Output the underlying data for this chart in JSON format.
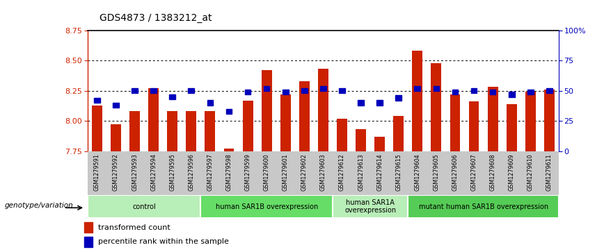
{
  "title": "GDS4873 / 1383212_at",
  "samples": [
    "GSM1279591",
    "GSM1279592",
    "GSM1279593",
    "GSM1279594",
    "GSM1279595",
    "GSM1279596",
    "GSM1279597",
    "GSM1279598",
    "GSM1279599",
    "GSM1279600",
    "GSM1279601",
    "GSM1279602",
    "GSM1279603",
    "GSM1279612",
    "GSM1279613",
    "GSM1279614",
    "GSM1279615",
    "GSM1279604",
    "GSM1279605",
    "GSM1279606",
    "GSM1279607",
    "GSM1279608",
    "GSM1279609",
    "GSM1279610",
    "GSM1279611"
  ],
  "bar_values": [
    8.13,
    7.97,
    8.08,
    8.27,
    8.08,
    8.08,
    8.08,
    7.77,
    8.17,
    8.42,
    8.22,
    8.33,
    8.43,
    8.02,
    7.93,
    7.87,
    8.04,
    8.58,
    8.48,
    8.22,
    8.16,
    8.28,
    8.14,
    8.24,
    8.26
  ],
  "blue_values": [
    42,
    38,
    50,
    50,
    45,
    50,
    40,
    33,
    49,
    52,
    49,
    50,
    52,
    50,
    40,
    40,
    44,
    52,
    52,
    49,
    50,
    49,
    47,
    49,
    50
  ],
  "ylim_left": [
    7.75,
    8.75
  ],
  "yticks_left": [
    7.75,
    8.0,
    8.25,
    8.5,
    8.75
  ],
  "yticks_right_vals": [
    0,
    25,
    50,
    75,
    100
  ],
  "yticks_right_labels": [
    "0",
    "25",
    "50",
    "75",
    "100%"
  ],
  "bar_color": "#CC2200",
  "blue_color": "#0000BB",
  "groups": [
    {
      "label": "control",
      "start": 0,
      "end": 5,
      "color": "#B8EEB8"
    },
    {
      "label": "human SAR1B overexpression",
      "start": 6,
      "end": 12,
      "color": "#66DD66"
    },
    {
      "label": "human SAR1A\noverexpression",
      "start": 13,
      "end": 16,
      "color": "#B8EEB8"
    },
    {
      "label": "mutant human SAR1B overexpression",
      "start": 17,
      "end": 24,
      "color": "#55CC55"
    }
  ],
  "legend_bar": "transformed count",
  "legend_blue": "percentile rank within the sample",
  "genotype_label": "genotype/variation",
  "hgrid_dotted": [
    8.0,
    8.25,
    8.5
  ],
  "bar_width": 0.55
}
